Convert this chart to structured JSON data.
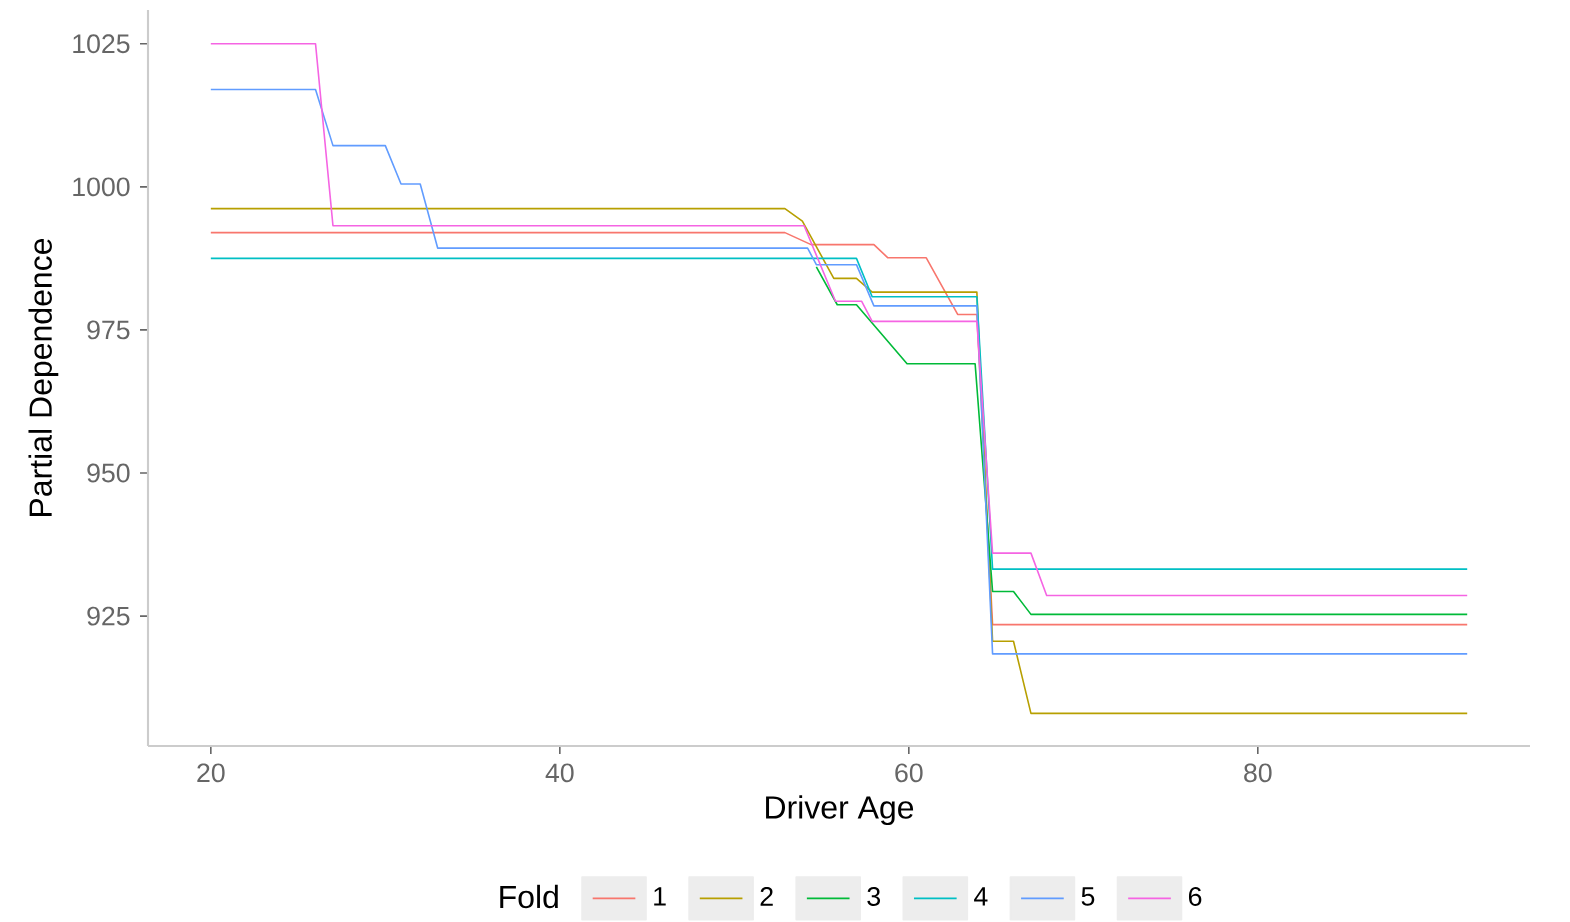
{
  "chart_data": {
    "type": "line",
    "xlabel": "Driver Age",
    "ylabel": "Partial Dependence",
    "legend_title": "Fold",
    "legend": "bottom",
    "grid": false,
    "line_style": "solid",
    "xlim": [
      16.4,
      95.6
    ],
    "ylim": [
      902.3,
      1030.9
    ],
    "xticks": [
      20,
      40,
      60,
      80
    ],
    "yticks": [
      925,
      950,
      975,
      1000,
      1025
    ],
    "series": [
      {
        "name": "1",
        "color": "#F8766D",
        "x": [
          20,
          52.9,
          54.4,
          58.0,
          58.8,
          61.0,
          62.8,
          63.9,
          64.8,
          92
        ],
        "values": [
          992.0,
          992.0,
          989.9,
          989.9,
          987.6,
          987.6,
          977.7,
          977.7,
          923.5,
          923.5
        ]
      },
      {
        "name": "2",
        "color": "#B79F00",
        "x": [
          20,
          52.9,
          53.9,
          55.7,
          57.0,
          57.9,
          63.9,
          64.8,
          66.0,
          67.0,
          92
        ],
        "values": [
          996.2,
          996.2,
          994.0,
          984.0,
          984.0,
          981.6,
          981.6,
          920.6,
          920.6,
          908.0,
          908.0
        ]
      },
      {
        "name": "3",
        "color": "#00BA38",
        "x": [
          54.7,
          55.9,
          57.0,
          59.9,
          63.8,
          64.8,
          66.0,
          67.0,
          92
        ],
        "values": [
          986.0,
          979.4,
          979.4,
          969.1,
          969.1,
          929.3,
          929.3,
          925.3,
          925.3
        ]
      },
      {
        "name": "4",
        "color": "#00BFC4",
        "x": [
          20,
          57.0,
          57.9,
          63.9,
          64.8,
          92
        ],
        "values": [
          987.5,
          987.5,
          980.8,
          980.8,
          933.2,
          933.2
        ]
      },
      {
        "name": "5",
        "color": "#619CFF",
        "x": [
          20,
          26.0,
          27.0,
          30.0,
          30.9,
          32.0,
          33.0,
          54.2,
          54.7,
          57.0,
          58.0,
          63.9,
          64.8,
          92
        ],
        "values": [
          1017.0,
          1017.0,
          1007.2,
          1007.2,
          1000.5,
          1000.5,
          989.3,
          989.3,
          986.4,
          986.4,
          979.2,
          979.2,
          918.4,
          918.4
        ]
      },
      {
        "name": "6",
        "color": "#F564E3",
        "x": [
          20,
          26.0,
          27.0,
          54.0,
          55.8,
          57.3,
          57.9,
          63.9,
          64.8,
          67.0,
          67.9,
          92
        ],
        "values": [
          1025.0,
          1025.0,
          993.2,
          993.2,
          980.0,
          980.0,
          976.5,
          976.5,
          936.0,
          936.0,
          928.6,
          928.6
        ]
      }
    ]
  }
}
